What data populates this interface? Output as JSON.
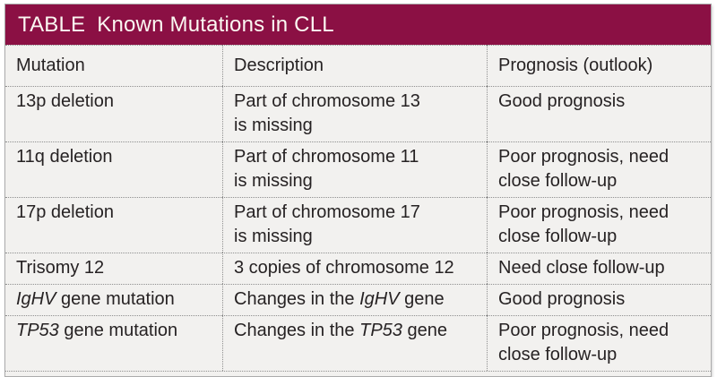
{
  "colors": {
    "header_bg": "#8B1044",
    "header_text": "#FBF8F2",
    "cell_bg": "#F2F1EF",
    "body_text": "#262223",
    "dotted_border": "#8F8F8F",
    "outer_border": "#ACACAC"
  },
  "header": {
    "label": "TABLE",
    "title": "Known Mutations in CLL"
  },
  "table": {
    "columns": [
      "Mutation",
      "Description",
      "Prognosis (outlook)"
    ],
    "rows": [
      {
        "cells": [
          {
            "segments": [
              {
                "text": "13p deletion"
              }
            ]
          },
          {
            "segments": [
              {
                "text": "Part of chromosome 13\nis missing"
              }
            ]
          },
          {
            "segments": [
              {
                "text": "Good prognosis"
              }
            ]
          }
        ]
      },
      {
        "cells": [
          {
            "segments": [
              {
                "text": "11q deletion"
              }
            ]
          },
          {
            "segments": [
              {
                "text": "Part of chromosome 11\nis missing"
              }
            ]
          },
          {
            "segments": [
              {
                "text": "Poor prognosis, need\nclose follow-up"
              }
            ]
          }
        ]
      },
      {
        "cells": [
          {
            "segments": [
              {
                "text": "17p deletion"
              }
            ]
          },
          {
            "segments": [
              {
                "text": "Part of chromosome 17\nis missing"
              }
            ]
          },
          {
            "segments": [
              {
                "text": "Poor prognosis, need\nclose follow-up"
              }
            ]
          }
        ]
      },
      {
        "cells": [
          {
            "segments": [
              {
                "text": "Trisomy 12"
              }
            ]
          },
          {
            "segments": [
              {
                "text": "3 copies of chromosome 12"
              }
            ]
          },
          {
            "segments": [
              {
                "text": "Need close follow-up"
              }
            ]
          }
        ]
      },
      {
        "cells": [
          {
            "segments": [
              {
                "text": "IgHV",
                "italic": true
              },
              {
                "text": " gene mutation"
              }
            ]
          },
          {
            "segments": [
              {
                "text": "Changes in the "
              },
              {
                "text": "IgHV",
                "italic": true
              },
              {
                "text": " gene"
              }
            ]
          },
          {
            "segments": [
              {
                "text": "Good prognosis"
              }
            ]
          }
        ]
      },
      {
        "cells": [
          {
            "segments": [
              {
                "text": "TP53",
                "italic": true
              },
              {
                "text": " gene mutation"
              }
            ]
          },
          {
            "segments": [
              {
                "text": "Changes in the "
              },
              {
                "text": "TP53",
                "italic": true
              },
              {
                "text": " gene"
              }
            ]
          },
          {
            "segments": [
              {
                "text": "Poor prognosis, need\nclose follow-up"
              }
            ]
          }
        ]
      }
    ]
  }
}
